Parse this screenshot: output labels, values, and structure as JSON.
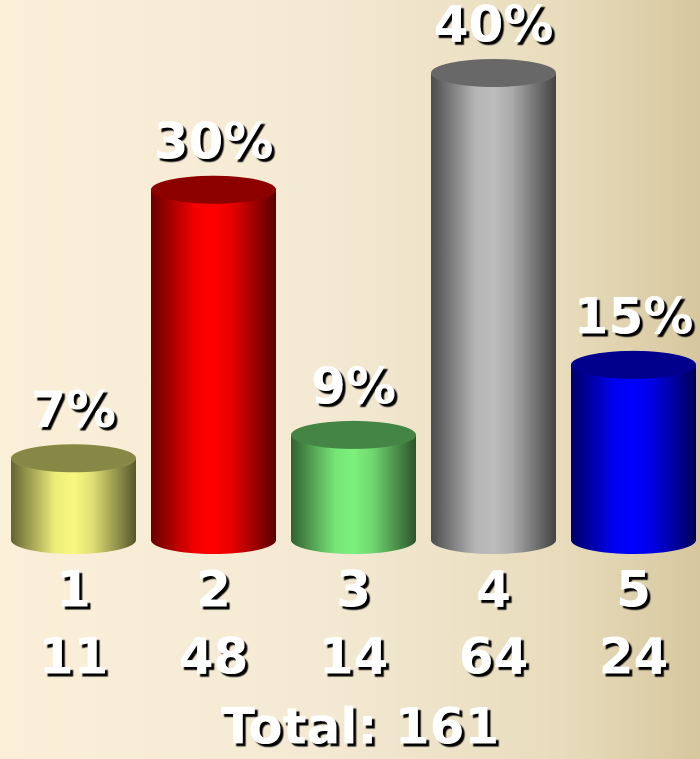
{
  "chart_data": {
    "type": "bar",
    "categories": [
      "1",
      "2",
      "3",
      "4",
      "5"
    ],
    "values": [
      7,
      30,
      9,
      40,
      15
    ],
    "value_labels": [
      "7%",
      "30%",
      "9%",
      "40%",
      "15%"
    ],
    "counts": [
      11,
      48,
      14,
      64,
      24
    ],
    "colors": [
      "#f8f880",
      "#ff0000",
      "#7cf07c",
      "#bdbdbd",
      "#0000ff"
    ],
    "total_label": "Total: 161"
  }
}
